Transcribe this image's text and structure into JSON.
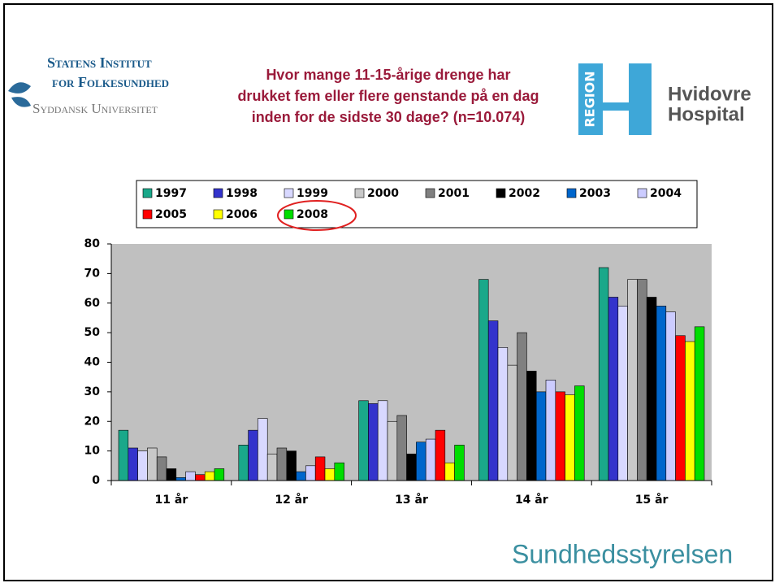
{
  "logos": {
    "sif_line1": "Statens Institut",
    "sif_line2": "for Folkesundhed",
    "sdu": "Syddansk Universitet",
    "region": "REGION",
    "hospital_line1": "Hvidovre",
    "hospital_line2": "Hospital",
    "sst": "Sundhedsstyrelsen"
  },
  "chart_data": {
    "type": "bar",
    "title": [
      "Hvor mange 11-15-årige drenge har",
      "drukket fem eller flere genstande på en dag",
      "inden for de sidste 30 dage? (n=10.074)"
    ],
    "categories": [
      "11 år",
      "12 år",
      "13 år",
      "14 år",
      "15 år"
    ],
    "series": [
      {
        "name": "1997",
        "color": "#1aa88a",
        "values": [
          17,
          12,
          27,
          68,
          72
        ]
      },
      {
        "name": "1998",
        "color": "#3333cc",
        "values": [
          11,
          17,
          26,
          54,
          62
        ]
      },
      {
        "name": "1999",
        "color": "#d8d8ff",
        "values": [
          10,
          21,
          27,
          45,
          59
        ]
      },
      {
        "name": "2000",
        "color": "#c8c8c8",
        "values": [
          11,
          9,
          20,
          39,
          68
        ]
      },
      {
        "name": "2001",
        "color": "#808080",
        "values": [
          8,
          11,
          22,
          50,
          68
        ]
      },
      {
        "name": "2002",
        "color": "#000000",
        "values": [
          4,
          10,
          9,
          37,
          62
        ]
      },
      {
        "name": "2003",
        "color": "#0066cc",
        "values": [
          1,
          3,
          13,
          30,
          59
        ]
      },
      {
        "name": "2004",
        "color": "#ccccff",
        "values": [
          3,
          5,
          14,
          34,
          57
        ]
      },
      {
        "name": "2005",
        "color": "#ff0000",
        "values": [
          2,
          8,
          17,
          30,
          49
        ]
      },
      {
        "name": "2006",
        "color": "#ffff00",
        "values": [
          3,
          4,
          6,
          29,
          47
        ]
      },
      {
        "name": "2008",
        "color": "#00dd00",
        "values": [
          4,
          6,
          12,
          32,
          52
        ]
      }
    ],
    "ylim": [
      0,
      80
    ],
    "yticks": [
      0,
      10,
      20,
      30,
      40,
      50,
      60,
      70,
      80
    ],
    "plot_background": "#c0c0c0"
  }
}
